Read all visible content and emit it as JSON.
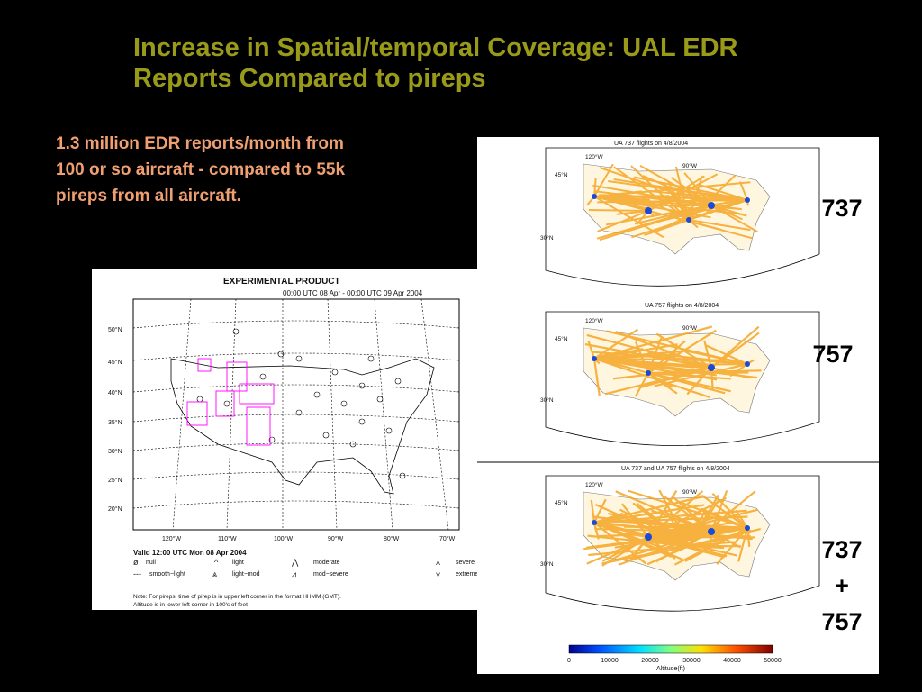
{
  "slide": {
    "title_line1": "Increase in Spatial/temporal Coverage: UAL EDR",
    "title_line2": "Reports Compared to pireps",
    "bullet_line1": "1.3 million EDR reports/month from",
    "bullet_line2": "100 or so aircraft - compared to 55k",
    "bullet_line3": "pireps from all aircraft."
  },
  "pirep_map": {
    "header": "EXPERIMENTAL PRODUCT",
    "time_range": "00:00 UTC 08 Apr - 00:00 UTC 09 Apr 2004",
    "lat_labels": [
      "50°N",
      "45°N",
      "40°N",
      "35°N",
      "30°N",
      "25°N",
      "20°N"
    ],
    "lon_labels": [
      "120°W",
      "110°W",
      "100°W",
      "90°W",
      "80°W",
      "70°W"
    ],
    "valid": "Valid 12:00 UTC Mon 08 Apr 2004",
    "legend": {
      "null": "null",
      "light": "light",
      "moderate": "moderate",
      "severe": "severe",
      "smooth_light": "smooth−light",
      "light_mod": "light−mod",
      "mod_severe": "mod−severe",
      "extreme": "extreme"
    },
    "note_line1": "Note: For pireps, time of pirep is in upper left corner in the format HHMM (GMT).",
    "note_line2": "Altitude is in lower left corner in 100's of feet"
  },
  "flight_maps": [
    {
      "title": "UA 737 flights on 4/8/2004",
      "label": "737"
    },
    {
      "title": "UA 757 flights on 4/8/2004",
      "label": "757"
    },
    {
      "title": "UA 737 and UA 757 flights on 4/8/2004",
      "label_line1": "737",
      "label_line2": "+",
      "label_line3": "757"
    }
  ],
  "map_axes": {
    "lon_120": "120°W",
    "lon_90": "90°W",
    "lat_45": "45°N",
    "lat_30": "30°N"
  },
  "colorbar": {
    "ticks": [
      "0",
      "10000",
      "20000",
      "30000",
      "40000",
      "50000"
    ],
    "label": "Altitude(ft)"
  },
  "colors": {
    "title": "#9a9a1a",
    "bullet": "#f0a070",
    "route": "#f5a623",
    "hub": "#1a4bd6"
  }
}
